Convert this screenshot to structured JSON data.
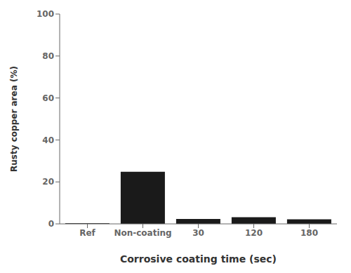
{
  "chart_data": {
    "type": "bar",
    "categories": [
      "Ref",
      "Non-coating",
      "30",
      "120",
      "180"
    ],
    "values": [
      0.3,
      24.8,
      2.3,
      3.2,
      2.2
    ],
    "color": "#1a1a1a",
    "xlabel": "Corrosive coating time (sec)",
    "ylabel": "Rusty copper area (%)",
    "ylim": [
      0,
      100
    ],
    "yticks": [
      0,
      20,
      40,
      60,
      80,
      100
    ],
    "grid": false
  }
}
